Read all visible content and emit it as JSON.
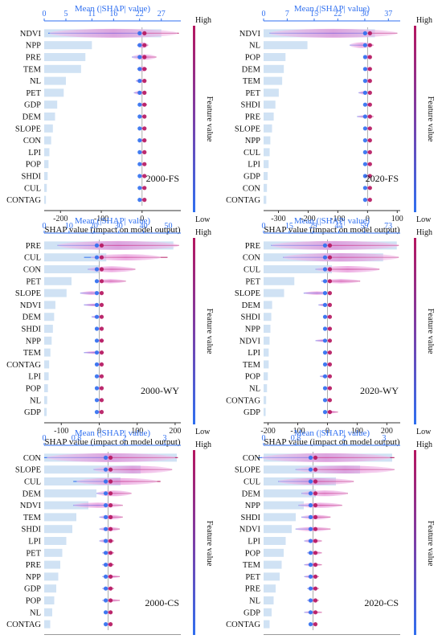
{
  "colors": {
    "high": "#b5165f",
    "low": "#2f6ff0",
    "mean_axis": "#2f6ff0",
    "mean_bar": "#c8ddf2",
    "violin": "#e27ad0"
  },
  "shared": {
    "mean_axis_title": "Mean (|SHAP| value)",
    "shap_axis_title": "SHAP value (impact on model output)",
    "colorbar_title": "Feature value",
    "colorbar_high": "High",
    "colorbar_low": "Low"
  },
  "chart_data": [
    {
      "type": "bar",
      "panel": "2000-FS",
      "features": [
        "NDVI",
        "NPP",
        "PRE",
        "TEM",
        "NL",
        "PET",
        "GDP",
        "DEM",
        "SLOPE",
        "CON",
        "LPI",
        "POP",
        "SHDI",
        "CUL",
        "CONTAG"
      ],
      "mean_abs_shap": [
        27,
        11,
        9.5,
        8.5,
        5,
        4.5,
        3,
        2.5,
        2,
        1.6,
        1.2,
        1,
        0.8,
        0.6,
        0.4
      ],
      "shap_spread": [
        [
          -230,
          90
        ],
        [
          -12,
          15
        ],
        [
          -25,
          35
        ],
        [
          -12,
          12
        ],
        [
          -15,
          8
        ],
        [
          -20,
          8
        ],
        [
          -8,
          12
        ],
        [
          -6,
          6
        ],
        [
          -4,
          4
        ],
        [
          -6,
          8
        ],
        [
          -4,
          4
        ],
        [
          -3,
          3
        ],
        [
          -3,
          3
        ],
        [
          -2,
          3
        ],
        [
          -2,
          2
        ]
      ],
      "shap_xlim": [
        -240,
        95
      ],
      "shap_ticks": [
        -200,
        -100,
        0
      ],
      "mean_xlim": [
        0,
        31.5
      ],
      "mean_ticks": [
        0,
        5,
        11,
        16,
        22,
        27
      ]
    },
    {
      "type": "bar",
      "panel": "2020-FS",
      "features": [
        "NDVI",
        "NL",
        "POP",
        "DEM",
        "TEM",
        "PET",
        "SHDI",
        "PRE",
        "SLOPE",
        "NPP",
        "CUL",
        "LPI",
        "GDP",
        "CON",
        "CONTAG"
      ],
      "mean_abs_shap": [
        33,
        13,
        6.5,
        6,
        5.5,
        4.5,
        3.5,
        3,
        2.5,
        2,
        1.8,
        1.5,
        1.2,
        1,
        0.8
      ],
      "shap_spread": [
        [
          -330,
          100
        ],
        [
          -60,
          20
        ],
        [
          -12,
          12
        ],
        [
          -12,
          12
        ],
        [
          -10,
          10
        ],
        [
          -30,
          8
        ],
        [
          -8,
          8
        ],
        [
          -35,
          20
        ],
        [
          -6,
          6
        ],
        [
          -5,
          10
        ],
        [
          -4,
          4
        ],
        [
          -5,
          5
        ],
        [
          -12,
          5
        ],
        [
          -4,
          4
        ],
        [
          -3,
          3
        ]
      ],
      "shap_xlim": [
        -350,
        110
      ],
      "shap_ticks": [
        -300,
        -200,
        -100,
        0,
        100
      ],
      "mean_xlim": [
        0,
        40.5
      ],
      "mean_ticks": [
        0,
        7,
        15,
        22,
        30,
        37
      ]
    },
    {
      "type": "bar",
      "panel": "2000-WY",
      "features": [
        "PRE",
        "CUL",
        "CON",
        "PET",
        "SLOPE",
        "NDVI",
        "DEM",
        "SHDI",
        "NPP",
        "TEM",
        "CONTAG",
        "LPI",
        "POP",
        "NL",
        "GDP"
      ],
      "mean_abs_shap": [
        52,
        25,
        22,
        11,
        9,
        4.5,
        4,
        3.5,
        3,
        2.5,
        2,
        1.8,
        1.5,
        1.2,
        1
      ],
      "shap_spread": [
        [
          -110,
          210
        ],
        [
          -40,
          180
        ],
        [
          -30,
          95
        ],
        [
          -10,
          70
        ],
        [
          -50,
          10
        ],
        [
          -40,
          10
        ],
        [
          -20,
          8
        ],
        [
          -10,
          6
        ],
        [
          -8,
          12
        ],
        [
          -40,
          12
        ],
        [
          -10,
          8
        ],
        [
          -5,
          5
        ],
        [
          -8,
          6
        ],
        [
          -5,
          5
        ],
        [
          -4,
          4
        ]
      ],
      "shap_xlim": [
        -145,
        215
      ],
      "shap_ticks": [
        -100,
        0,
        100,
        200
      ],
      "mean_xlim": [
        0,
        55
      ],
      "mean_ticks": [
        0,
        10,
        20,
        30,
        40,
        50
      ]
    },
    {
      "type": "bar",
      "panel": "2020-WY",
      "features": [
        "PRE",
        "CON",
        "CUL",
        "PET",
        "SLOPE",
        "DEM",
        "SHDI",
        "NPP",
        "NDVI",
        "LPI",
        "TEM",
        "POP",
        "NL",
        "CONTAG",
        "GDP"
      ],
      "mean_abs_shap": [
        78,
        70,
        40,
        18,
        12,
        5,
        4.5,
        4,
        3.5,
        3,
        3,
        2.5,
        2,
        1.5,
        1.2
      ],
      "shap_spread": [
        [
          -190,
          240
        ],
        [
          -150,
          240
        ],
        [
          -40,
          175
        ],
        [
          -20,
          110
        ],
        [
          -80,
          10
        ],
        [
          -30,
          8
        ],
        [
          -12,
          8
        ],
        [
          -12,
          12
        ],
        [
          -40,
          8
        ],
        [
          -10,
          8
        ],
        [
          -10,
          8
        ],
        [
          -25,
          8
        ],
        [
          -10,
          10
        ],
        [
          -8,
          8
        ],
        [
          -12,
          35
        ]
      ],
      "shap_xlim": [
        -215,
        245
      ],
      "shap_ticks": [
        -200,
        -100,
        0,
        100,
        200
      ],
      "mean_xlim": [
        0,
        80
      ],
      "mean_ticks": [
        0,
        15,
        29,
        44,
        59,
        73
      ]
    },
    {
      "type": "bar",
      "panel": "2000-CS",
      "features": [
        "CON",
        "SLOPE",
        "CUL",
        "DEM",
        "NDVI",
        "TEM",
        "SHDI",
        "LPI",
        "PET",
        "PRE",
        "NPP",
        "GDP",
        "POP",
        "NL",
        "CONTAG"
      ],
      "mean_abs_shap": [
        3.3,
        2.4,
        1.9,
        1.3,
        1.1,
        0.8,
        0.7,
        0.55,
        0.45,
        0.4,
        0.35,
        0.3,
        0.25,
        0.2,
        0.15
      ],
      "shap_spread": [
        [
          -22,
          24
        ],
        [
          -5,
          22
        ],
        [
          -12,
          18
        ],
        [
          -4,
          8
        ],
        [
          -12,
          5
        ],
        [
          -3,
          5
        ],
        [
          -3,
          4
        ],
        [
          -3,
          2
        ],
        [
          -2,
          2
        ],
        [
          -2,
          2
        ],
        [
          -2,
          4
        ],
        [
          -2,
          2
        ],
        [
          -2,
          4
        ],
        [
          -1.5,
          1.5
        ],
        [
          -1,
          1
        ]
      ],
      "shap_xlim": [
        -22,
        25
      ],
      "shap_ticks": [
        -20,
        -10,
        0,
        10,
        20
      ],
      "mean_xlim": [
        0,
        3.4
      ],
      "mean_ticks": [
        0,
        0.8,
        2,
        3
      ],
      "mean_tick_labels": [
        "0",
        "0.8",
        "2",
        "3"
      ]
    },
    {
      "type": "bar",
      "panel": "2020-CS",
      "features": [
        "CON",
        "SLOPE",
        "CUL",
        "DEM",
        "NPP",
        "SHDI",
        "NDVI",
        "LPI",
        "POP",
        "TEM",
        "PET",
        "PRE",
        "NL",
        "GDP",
        "CONTAG"
      ],
      "mean_abs_shap": [
        3.2,
        2.4,
        1.8,
        1.3,
        1.0,
        0.8,
        0.7,
        0.55,
        0.5,
        0.45,
        0.4,
        0.3,
        0.25,
        0.2,
        0.15
      ],
      "shap_spread": [
        [
          -19,
          28
        ],
        [
          -6,
          28
        ],
        [
          -12,
          14
        ],
        [
          -4,
          12
        ],
        [
          -5,
          10
        ],
        [
          -4,
          6
        ],
        [
          -6,
          6
        ],
        [
          -3,
          3
        ],
        [
          -2,
          3
        ],
        [
          -3,
          3
        ],
        [
          -3,
          2
        ],
        [
          -2,
          2
        ],
        [
          -2,
          2
        ],
        [
          -3,
          3
        ],
        [
          -1,
          1
        ]
      ],
      "shap_xlim": [
        -17,
        30
      ],
      "shap_ticks": [
        -10,
        0,
        10,
        20,
        30
      ],
      "mean_xlim": [
        0,
        3.4
      ],
      "mean_ticks": [
        0,
        0.8,
        2,
        3
      ],
      "mean_tick_labels": [
        "0",
        "0.8",
        "2",
        "3"
      ]
    }
  ]
}
